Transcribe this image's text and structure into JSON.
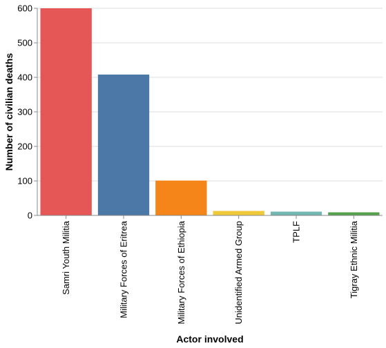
{
  "chart_data": {
    "type": "bar",
    "xlabel": "Actor involved",
    "ylabel": "Number of civilian deaths",
    "ylim": [
      0,
      600
    ],
    "yticks": [
      0,
      100,
      200,
      300,
      400,
      500,
      600
    ],
    "grid": true,
    "categories": [
      "Samri Youth Militia",
      "Military Forces of Eritrea",
      "Military Forces of Ethiopia",
      "Unidentified Armed Group",
      "TPLF",
      "Tigray Ethnic Militia"
    ],
    "values": [
      600,
      408,
      101,
      13,
      11,
      9
    ],
    "colors": [
      "#e45756",
      "#4c78a8",
      "#f58518",
      "#eeca3b",
      "#72b7b2",
      "#54a24b"
    ]
  }
}
